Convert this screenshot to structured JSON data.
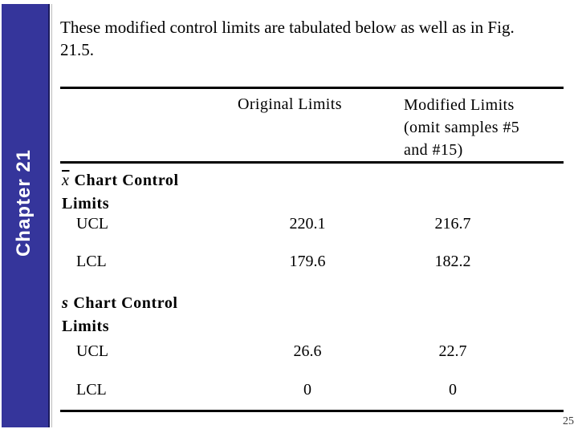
{
  "sidebar": {
    "label": "Chapter 21"
  },
  "title": "These modified control limits are tabulated below as well as in Fig.\n21.5.",
  "page_number": "25",
  "colors": {
    "sidebar_bg": "#35359b",
    "sidebar_border": "#1c1c5e",
    "text": "#000000"
  },
  "table": {
    "headers": {
      "original": "Original Limits",
      "modified": "Modified Limits\n(omit samples #5\nand #15)"
    },
    "groups": [
      {
        "symbol": "x",
        "label": "Chart Control\nLimits",
        "rows": [
          {
            "label": "UCL",
            "original": "220.1",
            "modified": "216.7"
          },
          {
            "label": "LCL",
            "original": "179.6",
            "modified": "182.2"
          }
        ]
      },
      {
        "symbol": "s",
        "label": "Chart Control\nLimits",
        "rows": [
          {
            "label": "UCL",
            "original": "26.6",
            "modified": "22.7"
          },
          {
            "label": "LCL",
            "original": "0",
            "modified": "0"
          }
        ]
      }
    ]
  }
}
